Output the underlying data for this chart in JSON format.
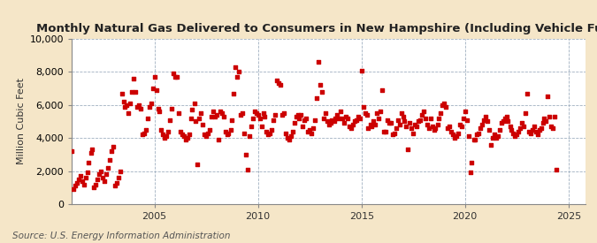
{
  "title": "Monthly Natural Gas Delivered to Consumers in New Hampshire (Including Vehicle Fuel)",
  "ylabel": "Million Cubic Feet",
  "source": "Source: U.S. Energy Information Administration",
  "figure_bg": "#f5e6c8",
  "plot_bg": "#ffffff",
  "marker_color": "#cc0000",
  "xlim": [
    2001.0,
    2025.8
  ],
  "ylim": [
    0,
    10000
  ],
  "yticks": [
    0,
    2000,
    4000,
    6000,
    8000,
    10000
  ],
  "xticks": [
    2005,
    2010,
    2015,
    2020,
    2025
  ],
  "title_fontsize": 9.5,
  "tick_fontsize": 8,
  "ylabel_fontsize": 8,
  "source_fontsize": 7.5,
  "data": [
    [
      2001.0,
      3200
    ],
    [
      2001.08,
      900
    ],
    [
      2001.17,
      1100
    ],
    [
      2001.25,
      1300
    ],
    [
      2001.33,
      1500
    ],
    [
      2001.42,
      1700
    ],
    [
      2001.5,
      1400
    ],
    [
      2001.58,
      1200
    ],
    [
      2001.67,
      1600
    ],
    [
      2001.75,
      1900
    ],
    [
      2001.83,
      2500
    ],
    [
      2001.92,
      3100
    ],
    [
      2002.0,
      3300
    ],
    [
      2002.08,
      1000
    ],
    [
      2002.17,
      1200
    ],
    [
      2002.25,
      1500
    ],
    [
      2002.33,
      1800
    ],
    [
      2002.42,
      2000
    ],
    [
      2002.5,
      1600
    ],
    [
      2002.58,
      1400
    ],
    [
      2002.67,
      1800
    ],
    [
      2002.75,
      2200
    ],
    [
      2002.83,
      2700
    ],
    [
      2002.92,
      3200
    ],
    [
      2003.0,
      3500
    ],
    [
      2003.08,
      1100
    ],
    [
      2003.17,
      1300
    ],
    [
      2003.25,
      1600
    ],
    [
      2003.33,
      2000
    ],
    [
      2003.42,
      6700
    ],
    [
      2003.5,
      6200
    ],
    [
      2003.58,
      5900
    ],
    [
      2003.67,
      6000
    ],
    [
      2003.75,
      5500
    ],
    [
      2003.83,
      6100
    ],
    [
      2003.92,
      6800
    ],
    [
      2004.0,
      7600
    ],
    [
      2004.08,
      6800
    ],
    [
      2004.17,
      5900
    ],
    [
      2004.25,
      6000
    ],
    [
      2004.33,
      5800
    ],
    [
      2004.42,
      4200
    ],
    [
      2004.5,
      4300
    ],
    [
      2004.58,
      4500
    ],
    [
      2004.67,
      5200
    ],
    [
      2004.75,
      5900
    ],
    [
      2004.83,
      6100
    ],
    [
      2004.92,
      7000
    ],
    [
      2005.0,
      7700
    ],
    [
      2005.08,
      6900
    ],
    [
      2005.17,
      5800
    ],
    [
      2005.25,
      5600
    ],
    [
      2005.33,
      4500
    ],
    [
      2005.42,
      4200
    ],
    [
      2005.5,
      4000
    ],
    [
      2005.58,
      4100
    ],
    [
      2005.67,
      4400
    ],
    [
      2005.75,
      5100
    ],
    [
      2005.83,
      5800
    ],
    [
      2005.92,
      7900
    ],
    [
      2006.0,
      7700
    ],
    [
      2006.08,
      7700
    ],
    [
      2006.17,
      5500
    ],
    [
      2006.25,
      4400
    ],
    [
      2006.33,
      4200
    ],
    [
      2006.42,
      4100
    ],
    [
      2006.5,
      3900
    ],
    [
      2006.58,
      4000
    ],
    [
      2006.67,
      4200
    ],
    [
      2006.75,
      5200
    ],
    [
      2006.83,
      5700
    ],
    [
      2006.92,
      6100
    ],
    [
      2007.0,
      5000
    ],
    [
      2007.08,
      2400
    ],
    [
      2007.17,
      5200
    ],
    [
      2007.25,
      5500
    ],
    [
      2007.33,
      4800
    ],
    [
      2007.42,
      4200
    ],
    [
      2007.5,
      4100
    ],
    [
      2007.58,
      4300
    ],
    [
      2007.67,
      4500
    ],
    [
      2007.75,
      5300
    ],
    [
      2007.83,
      5600
    ],
    [
      2007.92,
      5300
    ],
    [
      2008.0,
      5400
    ],
    [
      2008.08,
      3900
    ],
    [
      2008.17,
      5600
    ],
    [
      2008.25,
      5500
    ],
    [
      2008.33,
      5300
    ],
    [
      2008.42,
      4400
    ],
    [
      2008.5,
      4200
    ],
    [
      2008.58,
      4300
    ],
    [
      2008.67,
      4500
    ],
    [
      2008.75,
      5100
    ],
    [
      2008.83,
      6700
    ],
    [
      2008.92,
      8300
    ],
    [
      2009.0,
      7700
    ],
    [
      2009.08,
      8000
    ],
    [
      2009.17,
      5400
    ],
    [
      2009.25,
      5500
    ],
    [
      2009.33,
      4300
    ],
    [
      2009.42,
      3000
    ],
    [
      2009.5,
      2100
    ],
    [
      2009.58,
      4100
    ],
    [
      2009.67,
      4700
    ],
    [
      2009.75,
      5200
    ],
    [
      2009.83,
      5600
    ],
    [
      2009.92,
      5500
    ],
    [
      2010.0,
      5400
    ],
    [
      2010.08,
      5200
    ],
    [
      2010.17,
      4700
    ],
    [
      2010.25,
      5500
    ],
    [
      2010.33,
      5300
    ],
    [
      2010.42,
      4400
    ],
    [
      2010.5,
      4200
    ],
    [
      2010.58,
      4300
    ],
    [
      2010.67,
      4500
    ],
    [
      2010.75,
      5100
    ],
    [
      2010.83,
      5400
    ],
    [
      2010.92,
      7500
    ],
    [
      2011.0,
      7300
    ],
    [
      2011.08,
      7200
    ],
    [
      2011.17,
      5400
    ],
    [
      2011.25,
      5500
    ],
    [
      2011.33,
      4300
    ],
    [
      2011.42,
      4000
    ],
    [
      2011.5,
      3900
    ],
    [
      2011.58,
      4100
    ],
    [
      2011.67,
      4400
    ],
    [
      2011.75,
      4900
    ],
    [
      2011.83,
      5300
    ],
    [
      2011.92,
      5400
    ],
    [
      2012.0,
      5200
    ],
    [
      2012.08,
      5400
    ],
    [
      2012.17,
      4700
    ],
    [
      2012.25,
      5100
    ],
    [
      2012.33,
      5200
    ],
    [
      2012.42,
      4400
    ],
    [
      2012.5,
      4500
    ],
    [
      2012.58,
      4300
    ],
    [
      2012.67,
      4600
    ],
    [
      2012.75,
      5100
    ],
    [
      2012.83,
      6400
    ],
    [
      2012.92,
      8600
    ],
    [
      2013.0,
      7200
    ],
    [
      2013.08,
      6800
    ],
    [
      2013.17,
      5200
    ],
    [
      2013.25,
      5500
    ],
    [
      2013.33,
      5000
    ],
    [
      2013.42,
      4800
    ],
    [
      2013.5,
      4900
    ],
    [
      2013.58,
      5100
    ],
    [
      2013.67,
      5000
    ],
    [
      2013.75,
      5200
    ],
    [
      2013.83,
      5400
    ],
    [
      2013.92,
      5200
    ],
    [
      2014.0,
      5600
    ],
    [
      2014.08,
      5200
    ],
    [
      2014.17,
      4900
    ],
    [
      2014.25,
      5300
    ],
    [
      2014.33,
      5200
    ],
    [
      2014.42,
      4700
    ],
    [
      2014.5,
      4600
    ],
    [
      2014.58,
      4800
    ],
    [
      2014.67,
      5000
    ],
    [
      2014.75,
      5100
    ],
    [
      2014.83,
      5300
    ],
    [
      2014.92,
      5200
    ],
    [
      2015.0,
      8100
    ],
    [
      2015.08,
      5900
    ],
    [
      2015.17,
      5500
    ],
    [
      2015.25,
      5400
    ],
    [
      2015.33,
      4600
    ],
    [
      2015.42,
      4800
    ],
    [
      2015.5,
      4700
    ],
    [
      2015.58,
      5000
    ],
    [
      2015.67,
      4800
    ],
    [
      2015.75,
      5500
    ],
    [
      2015.83,
      5200
    ],
    [
      2015.92,
      5600
    ],
    [
      2016.0,
      6900
    ],
    [
      2016.08,
      4400
    ],
    [
      2016.17,
      4400
    ],
    [
      2016.25,
      5100
    ],
    [
      2016.33,
      4900
    ],
    [
      2016.42,
      4900
    ],
    [
      2016.5,
      4200
    ],
    [
      2016.58,
      4300
    ],
    [
      2016.67,
      4600
    ],
    [
      2016.75,
      5100
    ],
    [
      2016.83,
      4800
    ],
    [
      2016.92,
      5500
    ],
    [
      2017.0,
      5300
    ],
    [
      2017.08,
      5000
    ],
    [
      2017.17,
      4700
    ],
    [
      2017.25,
      3300
    ],
    [
      2017.33,
      4900
    ],
    [
      2017.42,
      4600
    ],
    [
      2017.5,
      4300
    ],
    [
      2017.58,
      4800
    ],
    [
      2017.67,
      4700
    ],
    [
      2017.75,
      5000
    ],
    [
      2017.83,
      5100
    ],
    [
      2017.92,
      5400
    ],
    [
      2018.0,
      5600
    ],
    [
      2018.08,
      5200
    ],
    [
      2018.17,
      4800
    ],
    [
      2018.25,
      4600
    ],
    [
      2018.33,
      5200
    ],
    [
      2018.42,
      4700
    ],
    [
      2018.5,
      4500
    ],
    [
      2018.58,
      4600
    ],
    [
      2018.67,
      4800
    ],
    [
      2018.75,
      5200
    ],
    [
      2018.83,
      5500
    ],
    [
      2018.92,
      6000
    ],
    [
      2019.0,
      6100
    ],
    [
      2019.08,
      5900
    ],
    [
      2019.17,
      4600
    ],
    [
      2019.25,
      4700
    ],
    [
      2019.33,
      4400
    ],
    [
      2019.42,
      4200
    ],
    [
      2019.5,
      4000
    ],
    [
      2019.58,
      4100
    ],
    [
      2019.67,
      4300
    ],
    [
      2019.75,
      4800
    ],
    [
      2019.83,
      4700
    ],
    [
      2019.92,
      5200
    ],
    [
      2020.0,
      5600
    ],
    [
      2020.08,
      5100
    ],
    [
      2020.17,
      4100
    ],
    [
      2020.25,
      1900
    ],
    [
      2020.33,
      2500
    ],
    [
      2020.42,
      3900
    ],
    [
      2020.5,
      3900
    ],
    [
      2020.58,
      4200
    ],
    [
      2020.67,
      4300
    ],
    [
      2020.75,
      4600
    ],
    [
      2020.83,
      4800
    ],
    [
      2020.92,
      5100
    ],
    [
      2021.0,
      5300
    ],
    [
      2021.08,
      5000
    ],
    [
      2021.17,
      4500
    ],
    [
      2021.25,
      3600
    ],
    [
      2021.33,
      4000
    ],
    [
      2021.42,
      4200
    ],
    [
      2021.5,
      4000
    ],
    [
      2021.58,
      4100
    ],
    [
      2021.67,
      4500
    ],
    [
      2021.75,
      4900
    ],
    [
      2021.83,
      5000
    ],
    [
      2021.92,
      5200
    ],
    [
      2022.0,
      5300
    ],
    [
      2022.08,
      5000
    ],
    [
      2022.17,
      4700
    ],
    [
      2022.25,
      4500
    ],
    [
      2022.33,
      4300
    ],
    [
      2022.42,
      4100
    ],
    [
      2022.5,
      4200
    ],
    [
      2022.58,
      4400
    ],
    [
      2022.67,
      4600
    ],
    [
      2022.75,
      4900
    ],
    [
      2022.83,
      4700
    ],
    [
      2022.92,
      5500
    ],
    [
      2023.0,
      6700
    ],
    [
      2023.08,
      4400
    ],
    [
      2023.17,
      4300
    ],
    [
      2023.25,
      4500
    ],
    [
      2023.33,
      4700
    ],
    [
      2023.42,
      4400
    ],
    [
      2023.5,
      4200
    ],
    [
      2023.58,
      4500
    ],
    [
      2023.67,
      4600
    ],
    [
      2023.75,
      4900
    ],
    [
      2023.83,
      5200
    ],
    [
      2023.92,
      5000
    ],
    [
      2024.0,
      6500
    ],
    [
      2024.08,
      5300
    ],
    [
      2024.17,
      4700
    ],
    [
      2024.25,
      4600
    ],
    [
      2024.33,
      5300
    ],
    [
      2024.42,
      2100
    ]
  ]
}
